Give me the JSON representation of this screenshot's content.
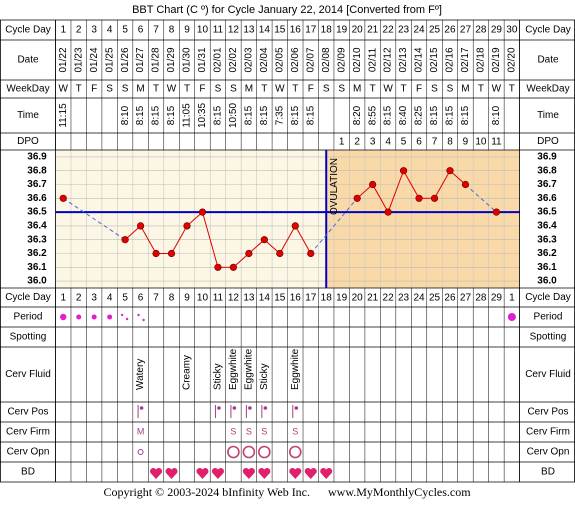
{
  "title": "BBT Chart (C º) for Cycle January 22, 2014  [Converted from Fº]",
  "row_labels": {
    "cycle_day": "Cycle Day",
    "date": "Date",
    "weekday": "WeekDay",
    "time": "Time",
    "dpo": "DPO",
    "period": "Period",
    "spotting": "Spotting",
    "cerv_fluid": "Cerv Fluid",
    "cerv_pos": "Cerv Pos",
    "cerv_firm": "Cerv Firm",
    "cerv_opn": "Cerv Opn",
    "bd": "BD"
  },
  "cycle_days_top": [
    1,
    2,
    3,
    4,
    5,
    6,
    7,
    8,
    9,
    10,
    11,
    12,
    13,
    14,
    15,
    16,
    17,
    18,
    19,
    20,
    21,
    22,
    23,
    24,
    25,
    26,
    27,
    28,
    29,
    30
  ],
  "dates": [
    "01/22",
    "01/23",
    "01/24",
    "01/25",
    "01/26",
    "01/27",
    "01/28",
    "01/29",
    "01/30",
    "01/31",
    "02/01",
    "02/02",
    "02/03",
    "02/04",
    "02/05",
    "02/06",
    "02/07",
    "02/08",
    "02/09",
    "02/10",
    "02/11",
    "02/12",
    "02/13",
    "02/14",
    "02/15",
    "02/16",
    "02/17",
    "02/18",
    "02/19",
    "02/20"
  ],
  "weekdays": [
    "W",
    "T",
    "F",
    "S",
    "S",
    "M",
    "T",
    "W",
    "T",
    "F",
    "S",
    "S",
    "M",
    "T",
    "W",
    "T",
    "F",
    "S",
    "S",
    "M",
    "T",
    "W",
    "T",
    "F",
    "S",
    "S",
    "M",
    "T",
    "W",
    "T"
  ],
  "times": [
    "11:15",
    null,
    null,
    null,
    "8:10",
    "8:15",
    "8:15",
    "8:15",
    "11:05",
    "10:35",
    "8:15",
    "10:50",
    "8:15",
    "8:15",
    "7:35",
    "8:15",
    "8:15",
    null,
    null,
    "8:20",
    "8:55",
    "8:15",
    "8:40",
    "8:25",
    "8:15",
    "8:15",
    "8:15",
    null,
    "8:10",
    null
  ],
  "dpo": [
    null,
    null,
    null,
    null,
    null,
    null,
    null,
    null,
    null,
    null,
    null,
    null,
    null,
    null,
    null,
    null,
    null,
    null,
    1,
    2,
    3,
    4,
    5,
    6,
    7,
    8,
    9,
    10,
    11,
    null
  ],
  "chart_data": {
    "type": "line",
    "color": "#e00000",
    "values": [
      36.6,
      null,
      null,
      null,
      36.3,
      36.4,
      36.2,
      36.2,
      36.4,
      36.5,
      36.1,
      36.1,
      36.2,
      36.3,
      36.2,
      36.4,
      36.2,
      null,
      null,
      36.6,
      36.7,
      36.5,
      36.8,
      36.6,
      36.6,
      36.8,
      36.7,
      null,
      36.5,
      null
    ],
    "ylim": [
      35.95,
      36.95
    ],
    "yticks": [
      {
        "value": 36,
        "label": "36.0"
      },
      36.1,
      36.2,
      36.3,
      36.4,
      36.5,
      36.6,
      36.7,
      36.8,
      36.9
    ],
    "grid": true,
    "coverline": 36.5,
    "coverline_color": "#0000c0",
    "annotation": "OVULATION"
  },
  "cycle_days_bottom": [
    1,
    2,
    3,
    4,
    5,
    6,
    7,
    8,
    9,
    10,
    11,
    12,
    13,
    14,
    15,
    16,
    17,
    18,
    19,
    20,
    21,
    22,
    23,
    24,
    25,
    26,
    27,
    28,
    29,
    1
  ],
  "cerv_fluid": [
    null,
    null,
    null,
    null,
    null,
    "Watery",
    null,
    null,
    "Creamy",
    null,
    "Sticky",
    "Eggwhite",
    "Eggwhite",
    "Sticky",
    null,
    "Eggwhite",
    null,
    null,
    null,
    null,
    null,
    null,
    null,
    null,
    null,
    null,
    null,
    null,
    null,
    null
  ],
  "cerv_firm": [
    null,
    null,
    null,
    null,
    null,
    "M",
    null,
    null,
    null,
    null,
    null,
    "S",
    "S",
    "S",
    null,
    "S",
    null,
    null,
    null,
    null,
    null,
    null,
    null,
    null,
    null,
    null,
    null,
    null,
    null,
    null
  ],
  "footer": "Copyright © 2003-2024 bInfinity Web Inc.",
  "footer_url": "www.MyMonthlyCycles.com"
}
